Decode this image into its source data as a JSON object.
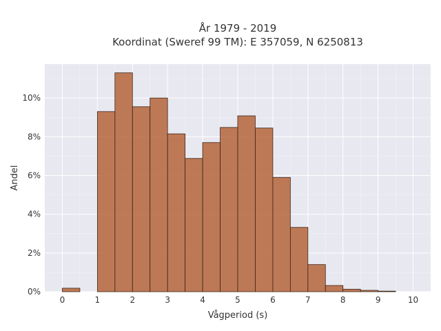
{
  "chart_data": {
    "type": "bar",
    "title": [
      "År 1979 - 2019",
      "Koordinat (Sweref 99 TM): E 357059, N 6250813"
    ],
    "xlabel": "Vågperiod (s)",
    "ylabel": "Andel",
    "xlim": [
      -0.5,
      10.5
    ],
    "ylim": [
      0,
      0.1175
    ],
    "x_ticks": [
      0,
      1,
      2,
      3,
      4,
      5,
      6,
      7,
      8,
      9,
      10
    ],
    "y_ticks": [
      0,
      0.02,
      0.04,
      0.06,
      0.08,
      0.1
    ],
    "y_tick_labels": [
      "0%",
      "2%",
      "4%",
      "6%",
      "8%",
      "10%"
    ],
    "bin_width": 0.5,
    "bin_starts": [
      0,
      0.5,
      1,
      1.5,
      2,
      2.5,
      3,
      3.5,
      4,
      4.5,
      5,
      5.5,
      6,
      6.5,
      7,
      7.5,
      8,
      8.5,
      9,
      9.5
    ],
    "values": [
      0.0018,
      0,
      0.093,
      0.113,
      0.0955,
      0.1,
      0.0815,
      0.0688,
      0.077,
      0.0848,
      0.0908,
      0.0845,
      0.059,
      0.0332,
      0.014,
      0.0032,
      0.0013,
      0.0007,
      0.0003,
      0
    ],
    "grid": true,
    "colors": {
      "bar": "#b5653b",
      "bar_edge": "#3b2518",
      "plot_bg": "#e8e8f0"
    }
  }
}
